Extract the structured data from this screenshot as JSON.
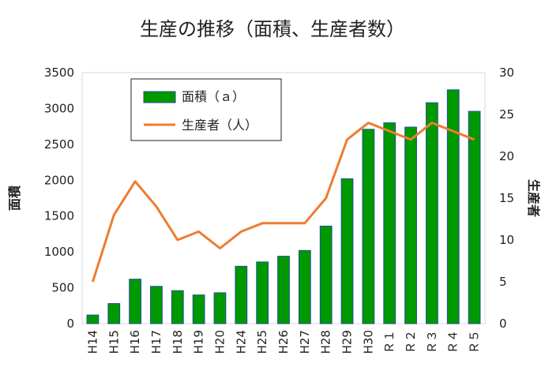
{
  "chart_data": {
    "type": "bar+line",
    "title": "生産の推移（面積、生産者数）",
    "categories": [
      "H14",
      "H15",
      "H16",
      "H17",
      "H18",
      "H19",
      "H20",
      "H24",
      "H25",
      "H26",
      "H27",
      "H28",
      "H29",
      "H30",
      "Ｒ１",
      "Ｒ２",
      "Ｒ３",
      "Ｒ４",
      "Ｒ５"
    ],
    "series": [
      {
        "name": "面積（ａ）",
        "type": "bar",
        "axis": "left",
        "color": "#009900",
        "border_color": "#1f4e9a",
        "values": [
          120,
          280,
          620,
          520,
          460,
          400,
          430,
          800,
          860,
          940,
          1020,
          1360,
          2020,
          2710,
          2800,
          2740,
          3080,
          3260,
          2960
        ]
      },
      {
        "name": "生産者（人）",
        "type": "line",
        "axis": "right",
        "color": "#ed7d31",
        "values": [
          5,
          13,
          17,
          14,
          10,
          11,
          9,
          11,
          12,
          12,
          12,
          15,
          22,
          24,
          23,
          22,
          24,
          23,
          22
        ]
      }
    ],
    "y_left": {
      "label": "面積",
      "lim": [
        0,
        3500
      ],
      "ticks": [
        "0",
        "500",
        "1000",
        "1500",
        "2000",
        "2500",
        "3000",
        "3500"
      ]
    },
    "y_right": {
      "label": "生産者",
      "lim": [
        0,
        30
      ],
      "ticks": [
        "0",
        "5",
        "10",
        "15",
        "20",
        "25",
        "30"
      ]
    },
    "grid": false,
    "legend_position": "top-left"
  }
}
